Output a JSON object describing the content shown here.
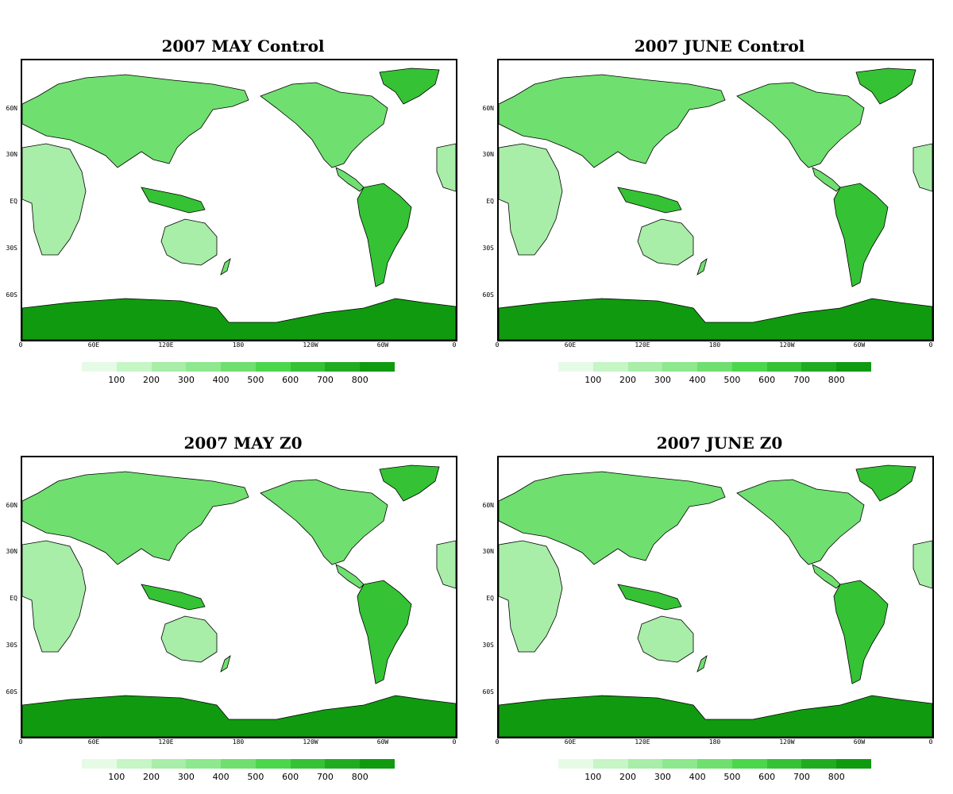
{
  "panels": [
    {
      "title": "2007 MAY Control"
    },
    {
      "title": "2007 JUNE Control"
    },
    {
      "title": "2007 MAY Z0"
    },
    {
      "title": "2007 JUNE Z0"
    }
  ],
  "lat_ticks": [
    "60N",
    "30N",
    "EQ",
    "30S",
    "60S"
  ],
  "lon_ticks": [
    "0",
    "60E",
    "120E",
    "180",
    "120W",
    "60W",
    "0"
  ],
  "colorbar": {
    "labels": [
      "100",
      "200",
      "300",
      "400",
      "500",
      "600",
      "700",
      "800"
    ],
    "colors": [
      "#e6fbe6",
      "#c6f5c6",
      "#a8eda8",
      "#8ee88e",
      "#6fdf6f",
      "#4cd64c",
      "#35c235",
      "#21ab21",
      "#109a10"
    ]
  },
  "colors": {
    "land_light": "#a8eda8",
    "land_mid": "#6fdf6f",
    "land_dark": "#35c235",
    "antarctica": "#109a10",
    "ocean": "#ffffff"
  }
}
